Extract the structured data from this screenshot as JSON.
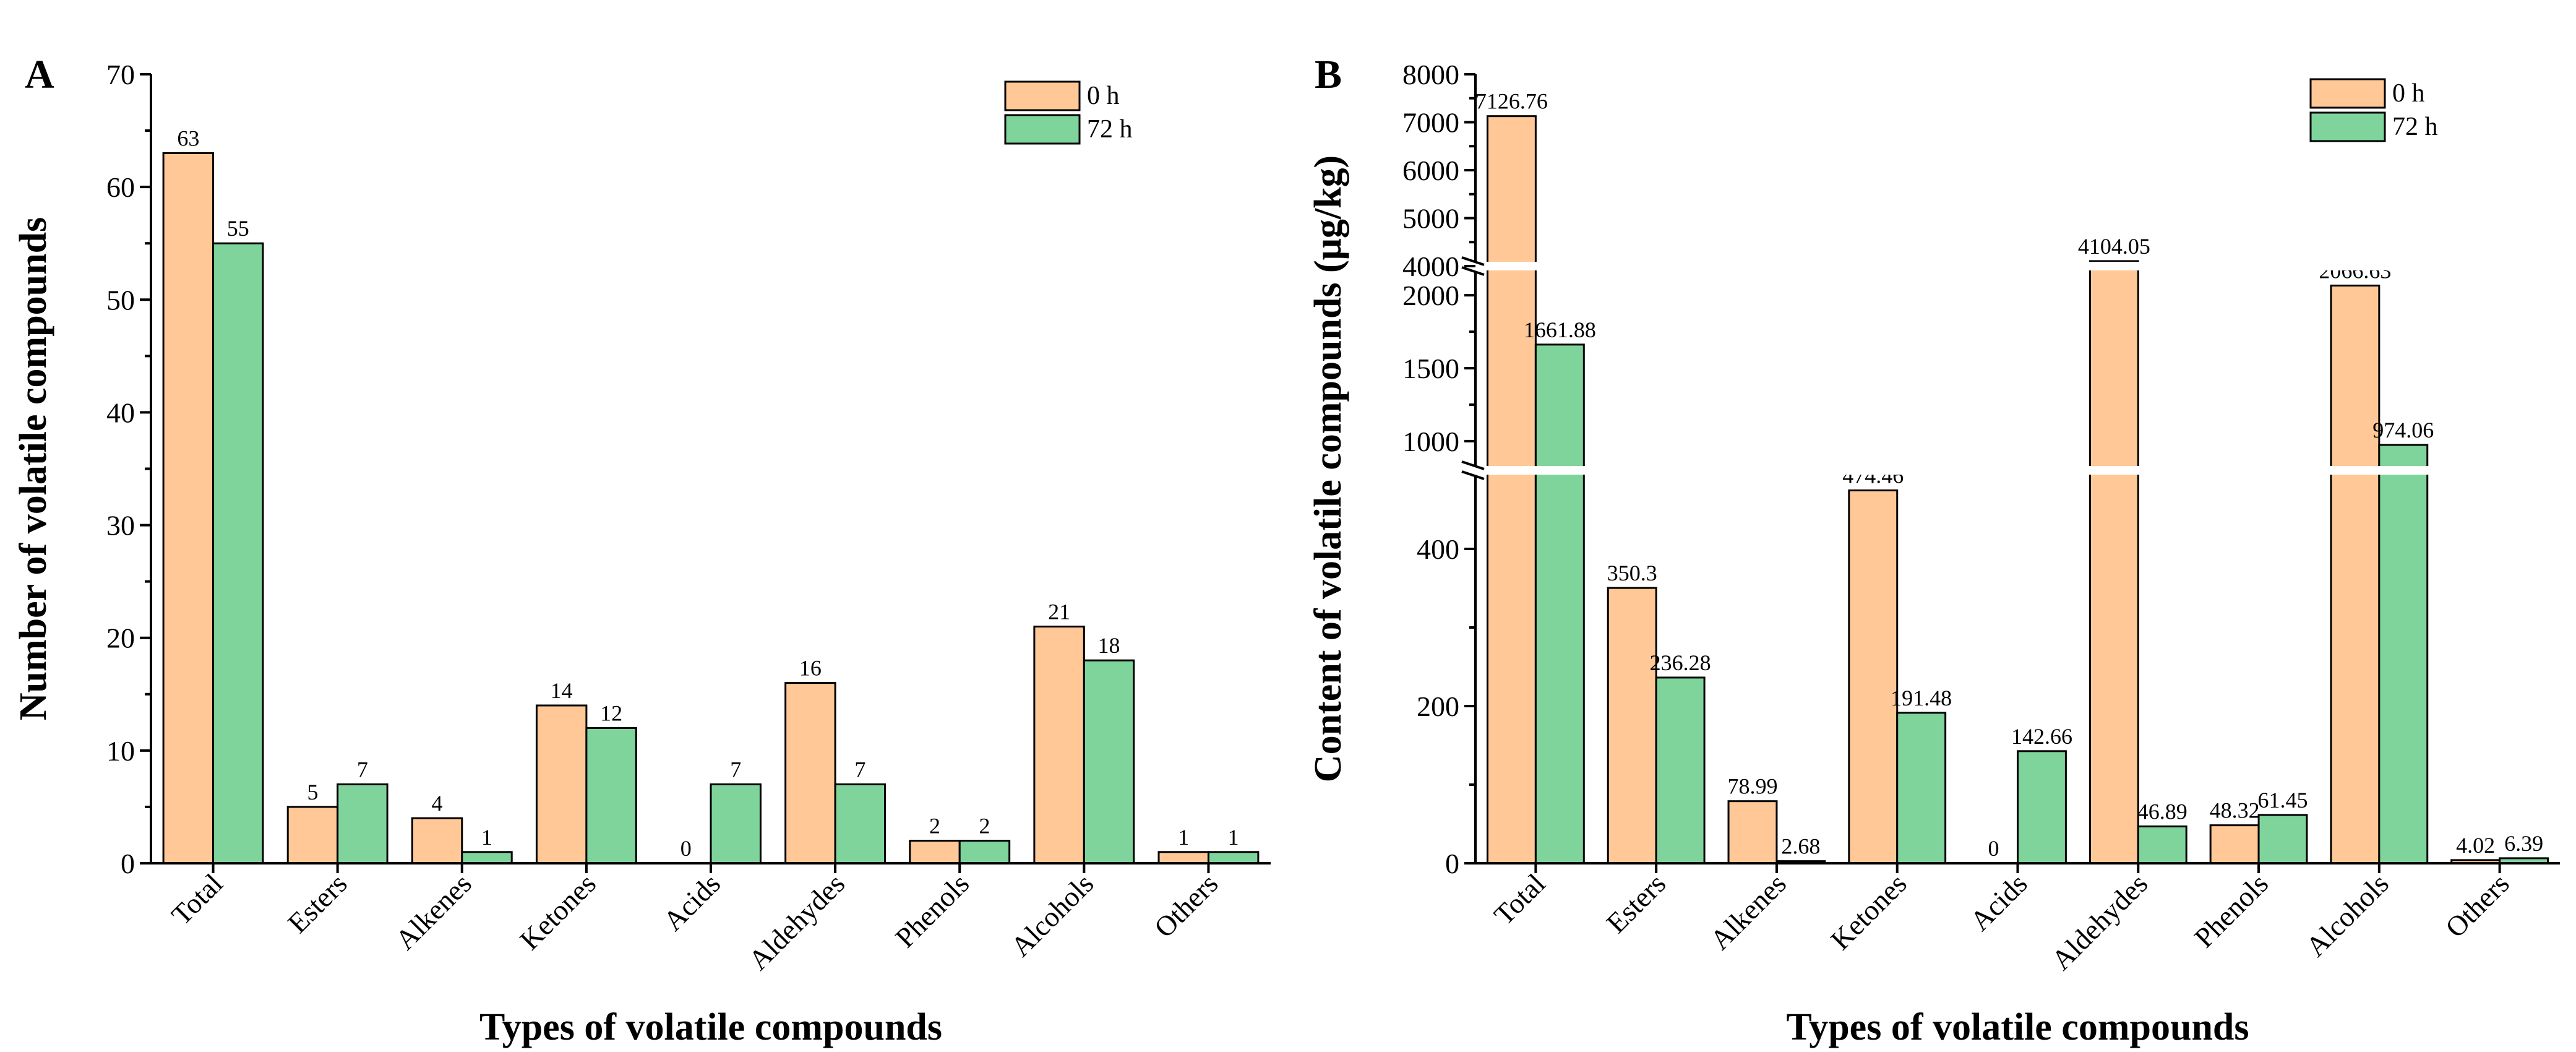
{
  "colors": {
    "h0": "#FFC896",
    "h72": "#7FD49C"
  },
  "chart_data": [
    {
      "type": "bar",
      "panel": "A",
      "ylabel": "Number of volatile compounds",
      "xlabel": "Types of volatile compounds",
      "ylim": [
        0,
        70
      ],
      "yticks": [
        "0",
        "10",
        "20",
        "30",
        "40",
        "50",
        "60",
        "70"
      ],
      "grid": false,
      "legend_position": "top-right",
      "categories": [
        "Total",
        "Esters",
        "Alkenes",
        "Ketones",
        "Acids",
        "Aldehydes",
        "Phenols",
        "Alcohols",
        "Others"
      ],
      "series": [
        {
          "name": "0 h",
          "values": [
            63,
            5,
            4,
            14,
            0,
            16,
            2,
            21,
            1
          ],
          "labels": [
            "63",
            "5",
            "4",
            "14",
            "0",
            "16",
            "2",
            "21",
            "1"
          ]
        },
        {
          "name": "72 h",
          "values": [
            55,
            7,
            1,
            12,
            7,
            7,
            2,
            18,
            1
          ],
          "labels": [
            "55",
            "7",
            "1",
            "12",
            "7",
            "7",
            "2",
            "18",
            "1"
          ]
        }
      ]
    },
    {
      "type": "bar",
      "panel": "B",
      "ylabel": "Content of volatile compounds (μg/kg)",
      "xlabel": "Types of volatile compounds",
      "ylim": [
        0,
        8000
      ],
      "axis_breaks": [
        [
          500,
          800
        ],
        [
          2200,
          4000
        ]
      ],
      "yticks": [
        "0",
        "200",
        "400",
        "1000",
        "1500",
        "2000",
        "4000",
        "5000",
        "6000",
        "7000",
        "8000"
      ],
      "grid": false,
      "legend_position": "top-right",
      "categories": [
        "Total",
        "Esters",
        "Alkenes",
        "Ketones",
        "Acids",
        "Aldehydes",
        "Phenols",
        "Alcohols",
        "Others"
      ],
      "series": [
        {
          "name": "0 h",
          "values": [
            7126.76,
            350.3,
            78.99,
            474.46,
            0,
            4104.05,
            48.32,
            2066.63,
            4.02
          ],
          "labels": [
            "7126.76",
            "350.3",
            "78.99",
            "474.46",
            "0",
            "4104.05",
            "48.32",
            "2066.63",
            "4.02"
          ]
        },
        {
          "name": "72 h",
          "values": [
            1661.88,
            236.28,
            2.68,
            191.48,
            142.66,
            46.89,
            61.45,
            974.06,
            6.39
          ],
          "labels": [
            "1661.88",
            "236.28",
            "2.68",
            "191.48",
            "142.66",
            "46.89",
            "61.45",
            "974.06",
            "6.39"
          ]
        }
      ]
    }
  ]
}
